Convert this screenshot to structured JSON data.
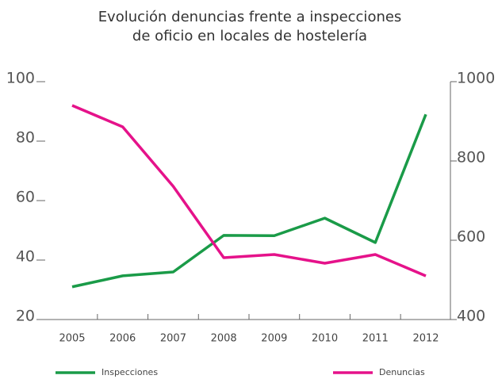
{
  "chart_data": {
    "type": "line",
    "title": [
      "Evolución denuncias frente a inspecciones",
      "de oficio en locales de hostelería"
    ],
    "categories": [
      "2005",
      "2006",
      "2007",
      "2008",
      "2009",
      "2010",
      "2011",
      "2012"
    ],
    "series": [
      {
        "name": "Inspecciones",
        "color": "#1a9b48",
        "values": [
          31,
          34.7,
          36,
          48.3,
          48.2,
          54.1,
          45.9,
          89
        ]
      },
      {
        "name": "Denuncias",
        "color": "#e5128a",
        "axis": "y2",
        "values": [
          940,
          886,
          736,
          556,
          564,
          542,
          564,
          510
        ]
      }
    ],
    "ylim": [
      20,
      100
    ],
    "yticks": [
      20,
      40,
      60,
      80,
      100
    ],
    "y2lim": [
      400,
      1000
    ],
    "y2ticks": [
      400,
      600,
      800,
      1000
    ]
  }
}
